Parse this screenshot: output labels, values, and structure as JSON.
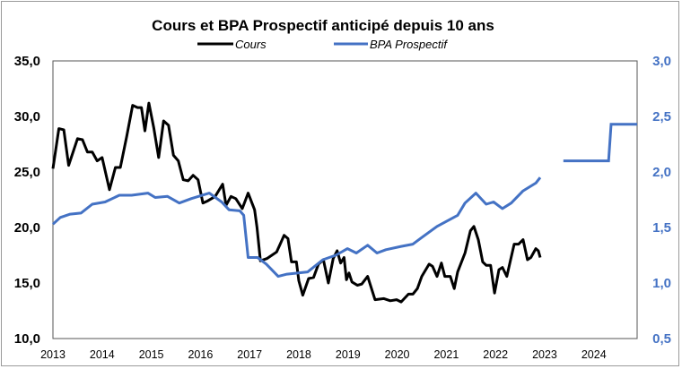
{
  "chart_data": {
    "type": "line",
    "title": "Cours et BPA Prospectif anticipé depuis 10 ans",
    "legend_position": "top",
    "grid": false,
    "x_ticks": [
      "2013",
      "2014",
      "2015",
      "2016",
      "2017",
      "2018",
      "2019",
      "2020",
      "2021",
      "2022",
      "2023",
      "2024"
    ],
    "xlim": [
      2013,
      2024.88
    ],
    "y_left": {
      "ylim": [
        10,
        35
      ],
      "ticks": [
        "10,0",
        "15,0",
        "20,0",
        "25,0",
        "30,0",
        "35,0"
      ],
      "tick_values": [
        10,
        15,
        20,
        25,
        30,
        35
      ],
      "color": "#000000"
    },
    "y_right": {
      "ylim": [
        0.5,
        3.0
      ],
      "ticks": [
        "0,5",
        "1,0",
        "1,5",
        "2,0",
        "2,5",
        "3,0"
      ],
      "tick_values": [
        0.5,
        1.0,
        1.5,
        2.0,
        2.5,
        3.0
      ],
      "color": "#4472C4"
    },
    "series": [
      {
        "name": "Cours",
        "axis": "left",
        "color": "#000000",
        "points": [
          [
            2013.0,
            25.3
          ],
          [
            2013.12,
            28.9
          ],
          [
            2013.22,
            28.8
          ],
          [
            2013.32,
            25.6
          ],
          [
            2013.5,
            28.0
          ],
          [
            2013.6,
            27.9
          ],
          [
            2013.7,
            26.8
          ],
          [
            2013.8,
            26.8
          ],
          [
            2013.9,
            26.0
          ],
          [
            2014.0,
            26.3
          ],
          [
            2014.15,
            23.4
          ],
          [
            2014.27,
            25.4
          ],
          [
            2014.37,
            25.4
          ],
          [
            2014.5,
            28.2
          ],
          [
            2014.62,
            31.0
          ],
          [
            2014.72,
            30.8
          ],
          [
            2014.8,
            30.8
          ],
          [
            2014.87,
            28.7
          ],
          [
            2014.95,
            31.2
          ],
          [
            2015.05,
            29.0
          ],
          [
            2015.15,
            26.3
          ],
          [
            2015.25,
            29.6
          ],
          [
            2015.35,
            29.2
          ],
          [
            2015.45,
            26.5
          ],
          [
            2015.55,
            26.0
          ],
          [
            2015.65,
            24.3
          ],
          [
            2015.75,
            24.2
          ],
          [
            2015.85,
            24.7
          ],
          [
            2015.95,
            24.3
          ],
          [
            2016.05,
            22.2
          ],
          [
            2016.15,
            22.4
          ],
          [
            2016.3,
            22.8
          ],
          [
            2016.45,
            23.9
          ],
          [
            2016.52,
            22.0
          ],
          [
            2016.62,
            22.8
          ],
          [
            2016.72,
            22.6
          ],
          [
            2016.85,
            21.7
          ],
          [
            2016.97,
            23.1
          ],
          [
            2017.1,
            21.6
          ],
          [
            2017.15,
            20.0
          ],
          [
            2017.22,
            17.0
          ],
          [
            2017.35,
            17.2
          ],
          [
            2017.45,
            17.5
          ],
          [
            2017.55,
            17.8
          ],
          [
            2017.62,
            18.5
          ],
          [
            2017.7,
            19.3
          ],
          [
            2017.78,
            19.0
          ],
          [
            2017.85,
            16.9
          ],
          [
            2017.95,
            16.9
          ],
          [
            2018.0,
            15.2
          ],
          [
            2018.08,
            13.9
          ],
          [
            2018.2,
            15.4
          ],
          [
            2018.3,
            15.5
          ],
          [
            2018.4,
            16.7
          ],
          [
            2018.5,
            17.1
          ],
          [
            2018.6,
            15.0
          ],
          [
            2018.7,
            17.2
          ],
          [
            2018.78,
            17.9
          ],
          [
            2018.85,
            16.8
          ],
          [
            2018.92,
            17.3
          ],
          [
            2018.97,
            15.3
          ],
          [
            2019.02,
            15.9
          ],
          [
            2019.08,
            15.1
          ],
          [
            2019.19,
            14.8
          ],
          [
            2019.28,
            14.9
          ],
          [
            2019.4,
            15.6
          ],
          [
            2019.55,
            13.5
          ],
          [
            2019.73,
            13.6
          ],
          [
            2019.86,
            13.4
          ],
          [
            2019.99,
            13.5
          ],
          [
            2020.08,
            13.3
          ],
          [
            2020.23,
            14.0
          ],
          [
            2020.32,
            14.0
          ],
          [
            2020.41,
            14.5
          ],
          [
            2020.5,
            15.6
          ],
          [
            2020.65,
            16.7
          ],
          [
            2020.72,
            16.5
          ],
          [
            2020.81,
            15.6
          ],
          [
            2020.9,
            16.8
          ],
          [
            2020.97,
            15.6
          ],
          [
            2021.08,
            15.6
          ],
          [
            2021.16,
            14.5
          ],
          [
            2021.23,
            16.0
          ],
          [
            2021.38,
            17.7
          ],
          [
            2021.49,
            19.7
          ],
          [
            2021.56,
            20.1
          ],
          [
            2021.65,
            18.9
          ],
          [
            2021.74,
            16.9
          ],
          [
            2021.81,
            16.6
          ],
          [
            2021.9,
            16.6
          ],
          [
            2021.98,
            14.1
          ],
          [
            2022.07,
            16.2
          ],
          [
            2022.14,
            16.4
          ],
          [
            2022.23,
            15.6
          ],
          [
            2022.38,
            18.5
          ],
          [
            2022.47,
            18.5
          ],
          [
            2022.56,
            18.9
          ],
          [
            2022.65,
            17.1
          ],
          [
            2022.72,
            17.3
          ],
          [
            2022.82,
            18.1
          ],
          [
            2022.87,
            17.9
          ],
          [
            2022.91,
            17.3
          ]
        ]
      },
      {
        "name": "BPA Prospectif",
        "axis": "right",
        "color": "#4472C4",
        "points": [
          [
            2013.0,
            1.53
          ],
          [
            2013.15,
            1.59
          ],
          [
            2013.35,
            1.62
          ],
          [
            2013.57,
            1.63
          ],
          [
            2013.8,
            1.71
          ],
          [
            2014.06,
            1.73
          ],
          [
            2014.35,
            1.79
          ],
          [
            2014.6,
            1.79
          ],
          [
            2014.93,
            1.81
          ],
          [
            2015.08,
            1.77
          ],
          [
            2015.33,
            1.78
          ],
          [
            2015.57,
            1.72
          ],
          [
            2015.81,
            1.76
          ],
          [
            2016.18,
            1.81
          ],
          [
            2016.43,
            1.73
          ],
          [
            2016.58,
            1.66
          ],
          [
            2016.8,
            1.65
          ],
          [
            2016.88,
            1.61
          ],
          [
            2016.97,
            1.23
          ],
          [
            2017.16,
            1.23
          ],
          [
            2017.34,
            1.17
          ],
          [
            2017.58,
            1.06
          ],
          [
            2017.76,
            1.08
          ],
          [
            2018.18,
            1.1
          ],
          [
            2018.49,
            1.21
          ],
          [
            2018.75,
            1.25
          ],
          [
            2018.99,
            1.31
          ],
          [
            2019.17,
            1.27
          ],
          [
            2019.4,
            1.34
          ],
          [
            2019.59,
            1.27
          ],
          [
            2019.77,
            1.3
          ],
          [
            2020.08,
            1.33
          ],
          [
            2020.32,
            1.35
          ],
          [
            2020.5,
            1.41
          ],
          [
            2020.81,
            1.51
          ],
          [
            2021.23,
            1.61
          ],
          [
            2021.38,
            1.72
          ],
          [
            2021.6,
            1.81
          ],
          [
            2021.81,
            1.71
          ],
          [
            2021.96,
            1.73
          ],
          [
            2022.14,
            1.67
          ],
          [
            2022.32,
            1.72
          ],
          [
            2022.56,
            1.83
          ],
          [
            2022.82,
            1.9
          ],
          [
            2022.91,
            1.95
          ]
        ],
        "forecast": [
          [
            2023.38,
            2.1
          ],
          [
            2024.3,
            2.1
          ],
          [
            2024.35,
            2.43
          ],
          [
            2024.88,
            2.43
          ]
        ]
      }
    ]
  }
}
